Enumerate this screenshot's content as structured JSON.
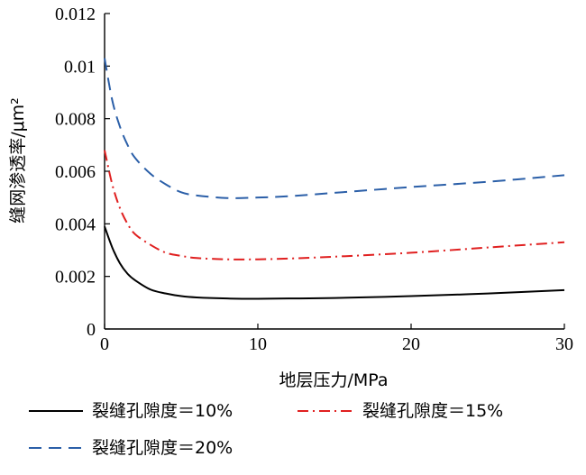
{
  "chart_data": {
    "type": "line",
    "title": "",
    "xlabel": "地层压力/MPa",
    "ylabel": "缝网渗透率/μm²",
    "xlim": [
      0,
      30
    ],
    "ylim": [
      0,
      0.012
    ],
    "xticks": [
      "0",
      "10",
      "20",
      "30"
    ],
    "yticks": [
      "0",
      "0.002",
      "0.004",
      "0.006",
      "0.008",
      "0.01",
      "0.012"
    ],
    "grid": false,
    "legend_placement": "bottom",
    "series": [
      {
        "name": "裂缝孔隙度＝10%",
        "color": "#000000",
        "dash": "solid",
        "x": [
          0,
          0.5,
          1,
          1.5,
          2,
          3,
          4,
          5,
          6,
          8,
          10,
          12,
          15,
          20,
          25,
          30
        ],
        "y": [
          0.0039,
          0.0031,
          0.0025,
          0.0021,
          0.00185,
          0.0015,
          0.00135,
          0.00125,
          0.0012,
          0.00116,
          0.00115,
          0.00116,
          0.00118,
          0.00125,
          0.00135,
          0.00148
        ]
      },
      {
        "name": "裂缝孔隙度＝15%",
        "color": "#e02020",
        "dash": "dashdot",
        "x": [
          0,
          0.5,
          1,
          1.5,
          2,
          3,
          4,
          5,
          6,
          8,
          10,
          12,
          15,
          20,
          25,
          30
        ],
        "y": [
          0.0068,
          0.0055,
          0.0046,
          0.004,
          0.0036,
          0.0032,
          0.0029,
          0.00278,
          0.0027,
          0.00265,
          0.00265,
          0.00268,
          0.00275,
          0.0029,
          0.0031,
          0.0033
        ]
      },
      {
        "name": "裂缝孔隙度＝20%",
        "color": "#2b5fa8",
        "dash": "dashed",
        "x": [
          0,
          0.5,
          1,
          1.5,
          2,
          3,
          4,
          5,
          6,
          8,
          10,
          12,
          15,
          20,
          25,
          30
        ],
        "y": [
          0.0103,
          0.0087,
          0.0077,
          0.007,
          0.0065,
          0.0059,
          0.0055,
          0.0052,
          0.00508,
          0.00498,
          0.005,
          0.00505,
          0.00518,
          0.0054,
          0.0056,
          0.00585
        ]
      }
    ]
  }
}
